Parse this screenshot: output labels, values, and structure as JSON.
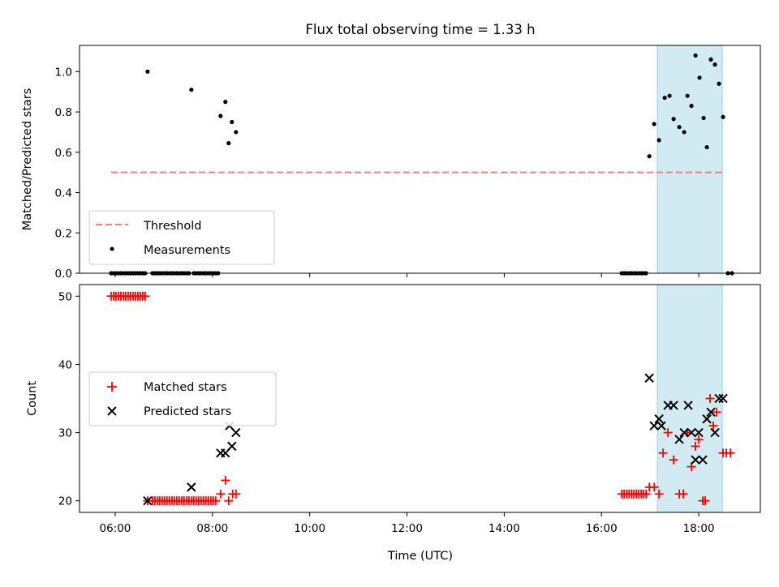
{
  "chart_data": [
    {
      "type": "scatter",
      "title": "Flux total observing time = 1.33 h",
      "xlabel": "",
      "ylabel": "Matched/Predicted stars",
      "xlim": [
        "05:16",
        "19:16"
      ],
      "ylim": [
        0,
        1.13
      ],
      "yticks": [
        "0.0",
        "0.2",
        "0.4",
        "0.6",
        "0.8",
        "1.0"
      ],
      "grid": false,
      "legend_position": "lower-left",
      "highlight_span": {
        "x": [
          "17:09",
          "18:29"
        ],
        "color": "#add8e6"
      },
      "threshold": {
        "name": "Threshold",
        "y": 0.5,
        "x": [
          "05:55",
          "18:32"
        ],
        "color": "#f08080",
        "style": "dashed"
      },
      "series": [
        {
          "name": "Measurements",
          "color": "#000000",
          "marker": "dot",
          "points": [
            [
              "05:55",
              0
            ],
            [
              "05:58",
              0
            ],
            [
              "06:01",
              0
            ],
            [
              "06:04",
              0
            ],
            [
              "06:07",
              0
            ],
            [
              "06:10",
              0
            ],
            [
              "06:13",
              0
            ],
            [
              "06:16",
              0
            ],
            [
              "06:19",
              0
            ],
            [
              "06:22",
              0
            ],
            [
              "06:25",
              0
            ],
            [
              "06:28",
              0
            ],
            [
              "06:31",
              0
            ],
            [
              "06:34",
              0
            ],
            [
              "06:37",
              0
            ],
            [
              "06:40",
              1.0
            ],
            [
              "06:46",
              0
            ],
            [
              "06:49",
              0
            ],
            [
              "06:52",
              0
            ],
            [
              "06:55",
              0
            ],
            [
              "06:58",
              0
            ],
            [
              "07:01",
              0
            ],
            [
              "07:04",
              0
            ],
            [
              "07:07",
              0
            ],
            [
              "07:10",
              0
            ],
            [
              "07:13",
              0
            ],
            [
              "07:16",
              0
            ],
            [
              "07:19",
              0
            ],
            [
              "07:22",
              0
            ],
            [
              "07:25",
              0
            ],
            [
              "07:28",
              0
            ],
            [
              "07:31",
              0
            ],
            [
              "07:34",
              0.91
            ],
            [
              "07:37",
              0
            ],
            [
              "07:40",
              0
            ],
            [
              "07:43",
              0
            ],
            [
              "07:46",
              0
            ],
            [
              "07:49",
              0
            ],
            [
              "07:52",
              0
            ],
            [
              "07:55",
              0
            ],
            [
              "07:58",
              0
            ],
            [
              "08:01",
              0
            ],
            [
              "08:04",
              0
            ],
            [
              "08:07",
              0
            ],
            [
              "08:10",
              0.78
            ],
            [
              "08:16",
              0.85
            ],
            [
              "08:20",
              0.645
            ],
            [
              "08:24",
              0.75
            ],
            [
              "08:29",
              0.7
            ],
            [
              "16:25",
              0
            ],
            [
              "16:28",
              0
            ],
            [
              "16:31",
              0
            ],
            [
              "16:34",
              0
            ],
            [
              "16:37",
              0
            ],
            [
              "16:40",
              0
            ],
            [
              "16:43",
              0
            ],
            [
              "16:46",
              0
            ],
            [
              "16:49",
              0
            ],
            [
              "16:52",
              0
            ],
            [
              "16:55",
              0
            ],
            [
              "16:59",
              0.58
            ],
            [
              "17:05",
              0.74
            ],
            [
              "17:11",
              0.66
            ],
            [
              "17:18",
              0.87
            ],
            [
              "17:24",
              0.88
            ],
            [
              "17:29",
              0.765
            ],
            [
              "17:36",
              0.725
            ],
            [
              "17:42",
              0.7
            ],
            [
              "17:46",
              0.88
            ],
            [
              "17:51",
              0.83
            ],
            [
              "17:56",
              1.08
            ],
            [
              "18:01",
              0.97
            ],
            [
              "18:06",
              0.77
            ],
            [
              "18:10",
              0.625
            ],
            [
              "18:15",
              1.06
            ],
            [
              "18:20",
              1.035
            ],
            [
              "18:25",
              0.94
            ],
            [
              "18:30",
              0.775
            ],
            [
              "18:36",
              0
            ],
            [
              "18:41",
              0
            ]
          ]
        }
      ]
    },
    {
      "type": "scatter",
      "title": "",
      "xlabel": "Time (UTC)",
      "ylabel": "Count",
      "xlim": [
        "05:16",
        "19:16"
      ],
      "ylim": [
        18.3,
        51.7
      ],
      "yticks": [
        "20",
        "30",
        "40",
        "50"
      ],
      "xticks": [
        "06:00",
        "08:00",
        "10:00",
        "12:00",
        "14:00",
        "16:00",
        "18:00"
      ],
      "grid": false,
      "legend_position": "center-left",
      "highlight_span": {
        "x": [
          "17:09",
          "18:29"
        ],
        "color": "#add8e6"
      },
      "series": [
        {
          "name": "Matched stars",
          "color": "#ff0000",
          "marker": "plus",
          "points": [
            [
              "05:55",
              50
            ],
            [
              "05:58",
              50
            ],
            [
              "06:01",
              50
            ],
            [
              "06:04",
              50
            ],
            [
              "06:07",
              50
            ],
            [
              "06:10",
              50
            ],
            [
              "06:13",
              50
            ],
            [
              "06:16",
              50
            ],
            [
              "06:19",
              50
            ],
            [
              "06:22",
              50
            ],
            [
              "06:25",
              50
            ],
            [
              "06:28",
              50
            ],
            [
              "06:31",
              50
            ],
            [
              "06:34",
              50
            ],
            [
              "06:37",
              50
            ],
            [
              "06:40",
              20
            ],
            [
              "06:46",
              20
            ],
            [
              "06:49",
              20
            ],
            [
              "06:52",
              20
            ],
            [
              "06:55",
              20
            ],
            [
              "06:58",
              20
            ],
            [
              "07:01",
              20
            ],
            [
              "07:04",
              20
            ],
            [
              "07:07",
              20
            ],
            [
              "07:10",
              20
            ],
            [
              "07:13",
              20
            ],
            [
              "07:16",
              20
            ],
            [
              "07:19",
              20
            ],
            [
              "07:22",
              20
            ],
            [
              "07:25",
              20
            ],
            [
              "07:28",
              20
            ],
            [
              "07:31",
              20
            ],
            [
              "07:34",
              20
            ],
            [
              "07:37",
              20
            ],
            [
              "07:40",
              20
            ],
            [
              "07:43",
              20
            ],
            [
              "07:46",
              20
            ],
            [
              "07:49",
              20
            ],
            [
              "07:52",
              20
            ],
            [
              "07:55",
              20
            ],
            [
              "07:58",
              20
            ],
            [
              "08:01",
              20
            ],
            [
              "08:04",
              20
            ],
            [
              "08:10",
              21
            ],
            [
              "08:16",
              23
            ],
            [
              "08:20",
              20
            ],
            [
              "08:25",
              21
            ],
            [
              "08:29",
              21
            ],
            [
              "16:25",
              21
            ],
            [
              "16:28",
              21
            ],
            [
              "16:31",
              21
            ],
            [
              "16:34",
              21
            ],
            [
              "16:37",
              21
            ],
            [
              "16:40",
              21
            ],
            [
              "16:43",
              21
            ],
            [
              "16:46",
              21
            ],
            [
              "16:49",
              21
            ],
            [
              "16:52",
              21
            ],
            [
              "16:55",
              21
            ],
            [
              "16:59",
              22
            ],
            [
              "17:05",
              22
            ],
            [
              "17:11",
              21
            ],
            [
              "17:16",
              27
            ],
            [
              "17:22",
              30
            ],
            [
              "17:29",
              26
            ],
            [
              "17:36",
              21
            ],
            [
              "17:41",
              21
            ],
            [
              "17:46",
              30
            ],
            [
              "17:51",
              25
            ],
            [
              "17:56",
              28
            ],
            [
              "18:00",
              29
            ],
            [
              "18:05",
              20
            ],
            [
              "18:08",
              20
            ],
            [
              "18:14",
              35
            ],
            [
              "18:18",
              31
            ],
            [
              "18:22",
              33
            ],
            [
              "18:30",
              27
            ],
            [
              "18:34",
              27
            ],
            [
              "18:39",
              27
            ]
          ]
        },
        {
          "name": "Predicted stars",
          "color": "#000000",
          "marker": "x",
          "points": [
            [
              "06:40",
              20
            ],
            [
              "07:34",
              22
            ],
            [
              "08:10",
              27
            ],
            [
              "08:16",
              27
            ],
            [
              "08:21",
              31
            ],
            [
              "08:24",
              28
            ],
            [
              "08:29",
              30
            ],
            [
              "16:59",
              38
            ],
            [
              "17:05",
              31
            ],
            [
              "17:11",
              32
            ],
            [
              "17:14",
              31
            ],
            [
              "17:22",
              34
            ],
            [
              "17:29",
              34
            ],
            [
              "17:36",
              29
            ],
            [
              "17:42",
              30
            ],
            [
              "17:47",
              34
            ],
            [
              "17:51",
              30
            ],
            [
              "17:56",
              26
            ],
            [
              "18:00",
              30
            ],
            [
              "18:05",
              26
            ],
            [
              "18:10",
              32
            ],
            [
              "18:15",
              33
            ],
            [
              "18:20",
              30
            ],
            [
              "18:25",
              35
            ],
            [
              "18:30",
              35
            ]
          ]
        }
      ]
    }
  ]
}
